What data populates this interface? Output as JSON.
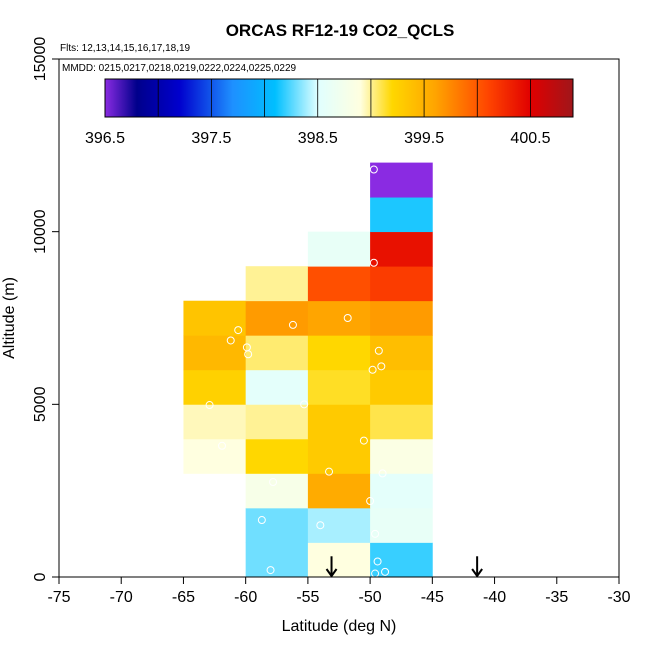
{
  "chart_data": {
    "type": "heatmap",
    "title": "ORCAS RF12-19 CO2_QCLS",
    "flights_note": "Flts: 12,13,14,15,16,17,18,19",
    "dates_note": "MMDD: 0215,0217,0218,0219,0222,0224,0225,0229",
    "xlabel": "Latitude (deg N)",
    "ylabel": "Altitude (m)",
    "xlim": [
      -75,
      -30
    ],
    "ylim": [
      0,
      15000
    ],
    "x_ticks": [
      -75,
      -70,
      -65,
      -60,
      -55,
      -50,
      -45,
      -40,
      -35,
      -30
    ],
    "x_tick_labels": [
      "-75",
      "-70",
      "-65",
      "-60",
      "-55",
      "-50",
      "-45",
      "-40",
      "-35",
      "-30"
    ],
    "y_ticks": [
      0,
      5000,
      10000,
      15000
    ],
    "y_tick_labels": [
      "0",
      "5000",
      "10000",
      "15000"
    ],
    "colorbar": {
      "range": [
        396.5,
        400.5
      ],
      "draw_range": [
        396.5,
        400.9
      ],
      "ticks": [
        396.5,
        397.5,
        398.5,
        399.5,
        400.5
      ],
      "tick_labels": [
        "396.5",
        "397.5",
        "398.5",
        "399.5",
        "400.5"
      ],
      "minor_ticks": [
        397.0,
        398.0,
        399.0,
        400.0
      ],
      "stops": [
        {
          "v": 396.5,
          "c": "#8a2be2"
        },
        {
          "v": 396.8,
          "c": "#00008b"
        },
        {
          "v": 397.2,
          "c": "#0000cd"
        },
        {
          "v": 397.7,
          "c": "#1e90ff"
        },
        {
          "v": 398.1,
          "c": "#00bfff"
        },
        {
          "v": 398.5,
          "c": "#e0ffff"
        },
        {
          "v": 398.9,
          "c": "#ffffe0"
        },
        {
          "v": 399.2,
          "c": "#ffd700"
        },
        {
          "v": 399.6,
          "c": "#ffa500"
        },
        {
          "v": 400.1,
          "c": "#ff4500"
        },
        {
          "v": 400.5,
          "c": "#e00000"
        },
        {
          "v": 400.9,
          "c": "#a0161a"
        }
      ]
    },
    "bin_width_deg": 5,
    "bin_height_m": 1000,
    "cells": [
      {
        "x0": -60,
        "y0": 0,
        "value": 398.3
      },
      {
        "x0": -55,
        "y0": 0,
        "value": 398.9
      },
      {
        "x0": -50,
        "y0": 0,
        "value": 398.2
      },
      {
        "x0": -60,
        "y0": 1000,
        "value": 398.3
      },
      {
        "x0": -55,
        "y0": 1000,
        "value": 398.4
      },
      {
        "x0": -50,
        "y0": 1000,
        "value": 398.6
      },
      {
        "x0": -60,
        "y0": 2000,
        "value": 398.8
      },
      {
        "x0": -55,
        "y0": 2000,
        "value": 399.55
      },
      {
        "x0": -50,
        "y0": 2000,
        "value": 398.55
      },
      {
        "x0": -65,
        "y0": 3000,
        "value": 398.9
      },
      {
        "x0": -60,
        "y0": 3000,
        "value": 399.2
      },
      {
        "x0": -55,
        "y0": 3000,
        "value": 399.3
      },
      {
        "x0": -50,
        "y0": 3000,
        "value": 398.85
      },
      {
        "x0": -65,
        "y0": 4000,
        "value": 398.95
      },
      {
        "x0": -60,
        "y0": 4000,
        "value": 399.0
      },
      {
        "x0": -55,
        "y0": 4000,
        "value": 399.3
      },
      {
        "x0": -50,
        "y0": 4000,
        "value": 399.1
      },
      {
        "x0": -65,
        "y0": 5000,
        "value": 399.25
      },
      {
        "x0": -60,
        "y0": 5000,
        "value": 398.55
      },
      {
        "x0": -55,
        "y0": 5000,
        "value": 399.15
      },
      {
        "x0": -50,
        "y0": 5000,
        "value": 399.3
      },
      {
        "x0": -65,
        "y0": 6000,
        "value": 399.45
      },
      {
        "x0": -60,
        "y0": 6000,
        "value": 399.05
      },
      {
        "x0": -55,
        "y0": 6000,
        "value": 399.2
      },
      {
        "x0": -50,
        "y0": 6000,
        "value": 399.4
      },
      {
        "x0": -65,
        "y0": 7000,
        "value": 399.35
      },
      {
        "x0": -60,
        "y0": 7000,
        "value": 399.65
      },
      {
        "x0": -55,
        "y0": 7000,
        "value": 399.6
      },
      {
        "x0": -50,
        "y0": 7000,
        "value": 399.65
      },
      {
        "x0": -60,
        "y0": 8000,
        "value": 399.0
      },
      {
        "x0": -55,
        "y0": 8000,
        "value": 400.05
      },
      {
        "x0": -50,
        "y0": 8000,
        "value": 400.15
      },
      {
        "x0": -55,
        "y0": 9000,
        "value": 398.6
      },
      {
        "x0": -50,
        "y0": 9000,
        "value": 400.4
      },
      {
        "x0": -50,
        "y0": 10000,
        "value": 398.15
      },
      {
        "x0": -50,
        "y0": 11000,
        "value": 396.5
      }
    ],
    "sample_points": [
      {
        "lat": -49.7,
        "alt": 11800
      },
      {
        "lat": -49.7,
        "alt": 9100
      },
      {
        "lat": -51.8,
        "alt": 7500
      },
      {
        "lat": -56.2,
        "alt": 7300
      },
      {
        "lat": -60.6,
        "alt": 7150
      },
      {
        "lat": -61.2,
        "alt": 6850
      },
      {
        "lat": -59.9,
        "alt": 6650
      },
      {
        "lat": -59.8,
        "alt": 6450
      },
      {
        "lat": -49.3,
        "alt": 6550
      },
      {
        "lat": -49.1,
        "alt": 6100
      },
      {
        "lat": -49.8,
        "alt": 6000
      },
      {
        "lat": -62.9,
        "alt": 4980
      },
      {
        "lat": -55.3,
        "alt": 5000
      },
      {
        "lat": -61.9,
        "alt": 3800
      },
      {
        "lat": -50.5,
        "alt": 3950
      },
      {
        "lat": -53.3,
        "alt": 3050
      },
      {
        "lat": -49.0,
        "alt": 3000
      },
      {
        "lat": -57.8,
        "alt": 2750
      },
      {
        "lat": -50.0,
        "alt": 2200
      },
      {
        "lat": -58.7,
        "alt": 1650
      },
      {
        "lat": -54.0,
        "alt": 1500
      },
      {
        "lat": -49.6,
        "alt": 1250
      },
      {
        "lat": -49.4,
        "alt": 450
      },
      {
        "lat": -48.8,
        "alt": 150
      },
      {
        "lat": -49.6,
        "alt": 100
      },
      {
        "lat": -58.0,
        "alt": 200
      }
    ],
    "arrows": [
      {
        "lat": -53.1,
        "alt_top": 600,
        "alt_bottom": 0
      },
      {
        "lat": -41.4,
        "alt_top": 600,
        "alt_bottom": 0
      }
    ]
  }
}
